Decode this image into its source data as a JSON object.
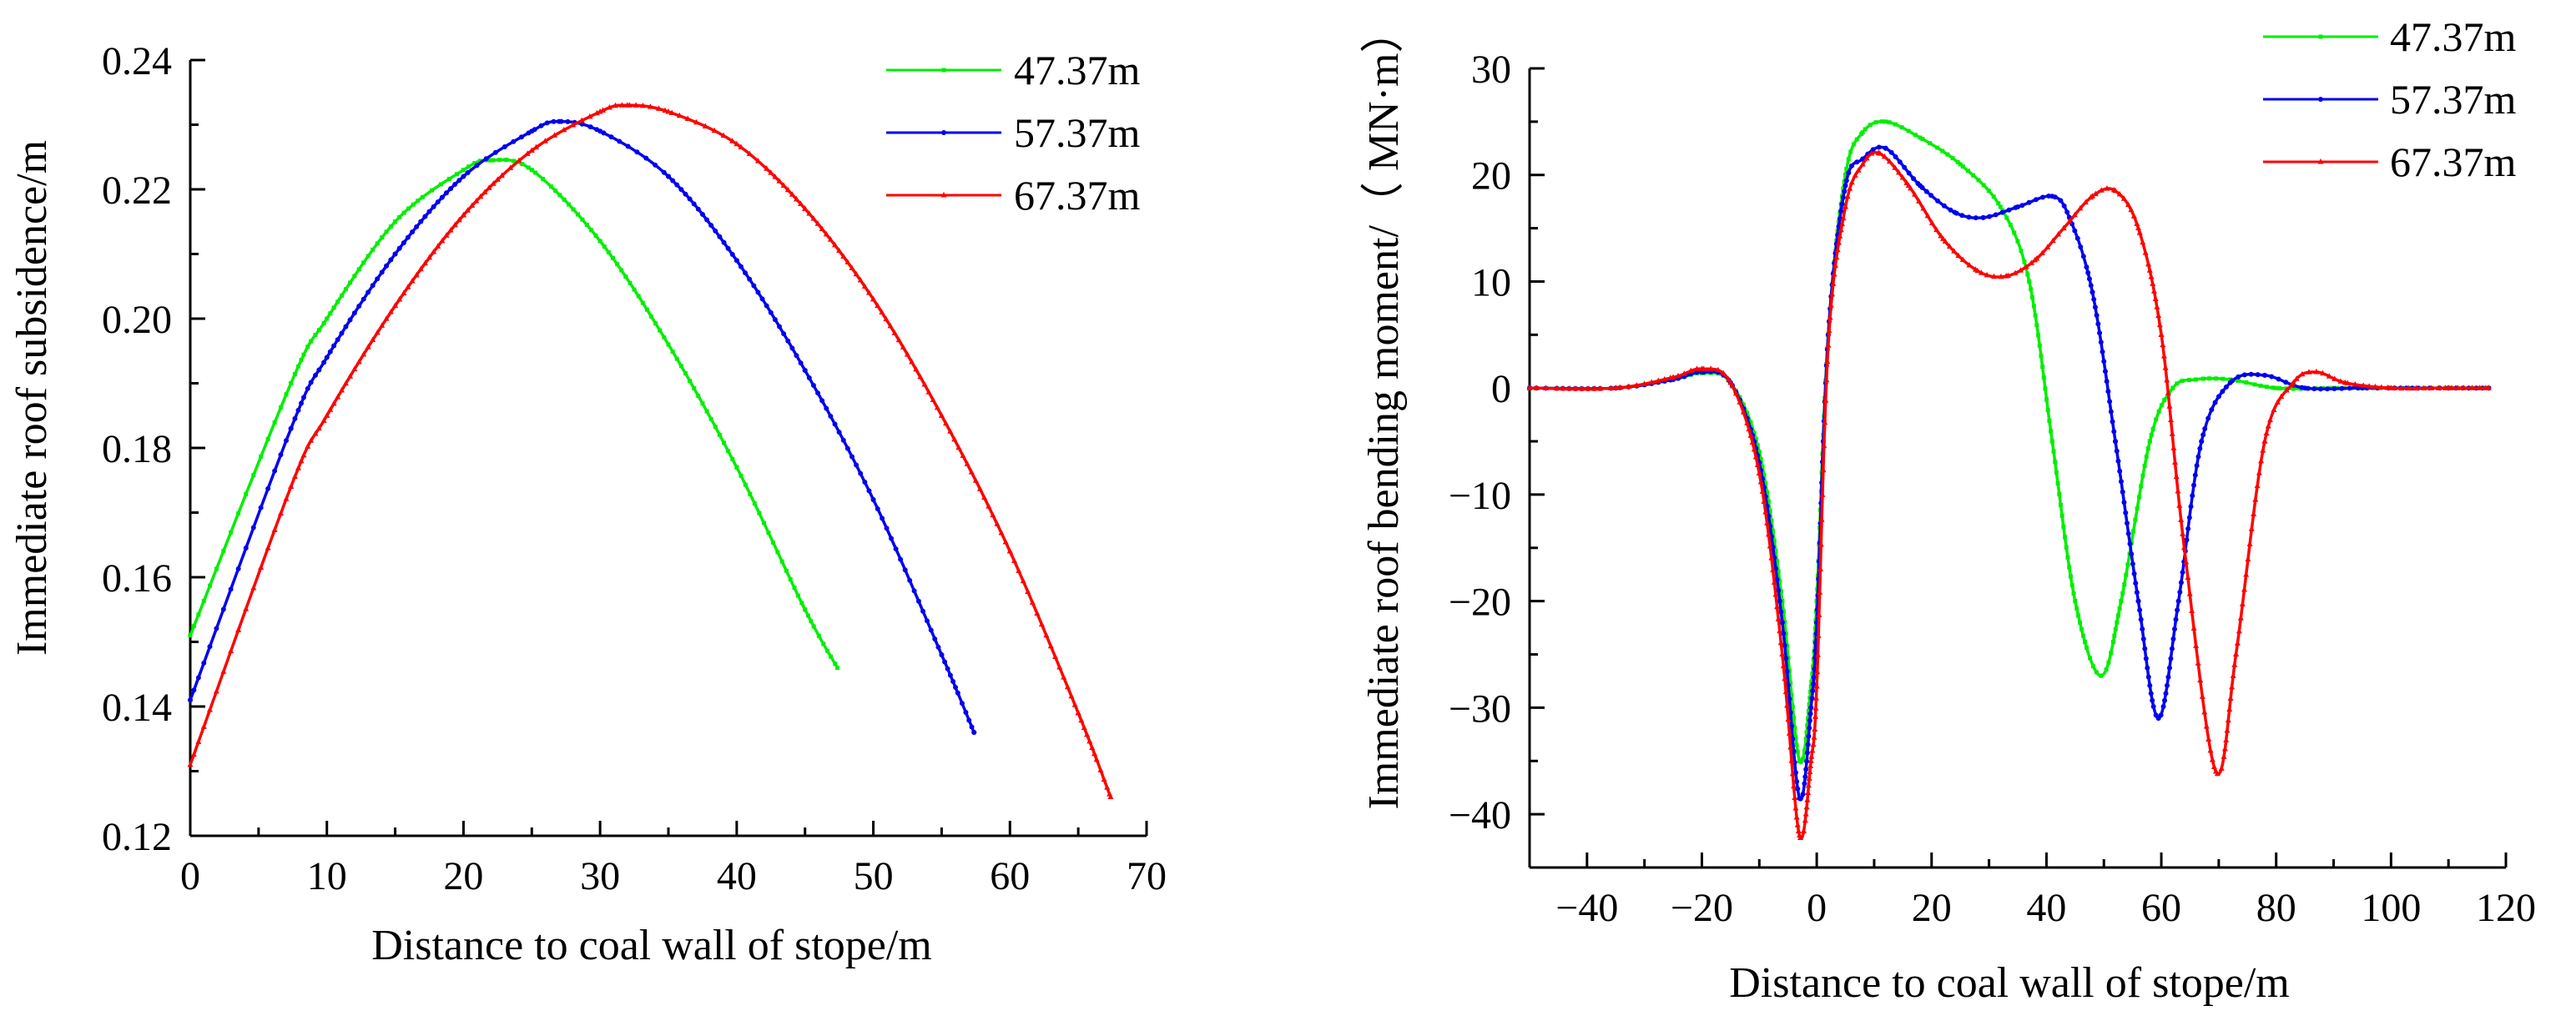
{
  "chart_data": [
    {
      "type": "line",
      "xlabel": "Distance to coal wall of stope/m",
      "ylabel": "Immediate roof subsidence/m",
      "xlim": [
        0,
        70
      ],
      "ylim": [
        0.12,
        0.24
      ],
      "xticks": [
        0,
        10,
        20,
        30,
        40,
        50,
        60,
        70
      ],
      "xtick_labels": [
        "0",
        "10",
        "20",
        "30",
        "40",
        "50",
        "60",
        "70"
      ],
      "yticks": [
        0.12,
        0.14,
        0.16,
        0.18,
        0.2,
        0.22,
        0.24
      ],
      "ytick_labels": [
        "0.12",
        "0.14",
        "0.16",
        "0.18",
        "0.20",
        "0.22",
        "0.24"
      ],
      "legend_position": "top-right",
      "series": [
        {
          "name": "47.37m",
          "color": "#00ee00",
          "marker": "square",
          "x": [
            0,
            7.37,
            10,
            15,
            20,
            22,
            25,
            30,
            35,
            40,
            45,
            47.37
          ],
          "y": [
            0.151,
            0.19,
            0.2,
            0.215,
            0.223,
            0.2245,
            0.223,
            0.212,
            0.196,
            0.177,
            0.155,
            0.146
          ]
        },
        {
          "name": "57.37m",
          "color": "#0000ee",
          "marker": "circle",
          "x": [
            0,
            7.37,
            10,
            15,
            20,
            25,
            27,
            30,
            35,
            40,
            45,
            50,
            55,
            57.37
          ],
          "y": [
            0.141,
            0.183,
            0.194,
            0.21,
            0.222,
            0.229,
            0.2305,
            0.229,
            0.222,
            0.209,
            0.192,
            0.172,
            0.148,
            0.136
          ]
        },
        {
          "name": "67.37m",
          "color": "#ff0000",
          "marker": "triangle",
          "x": [
            0,
            7.37,
            10,
            15,
            20,
            25,
            30,
            32,
            35,
            40,
            45,
            50,
            55,
            60,
            65,
            67.37
          ],
          "y": [
            0.131,
            0.174,
            0.185,
            0.202,
            0.216,
            0.226,
            0.232,
            0.233,
            0.232,
            0.227,
            0.217,
            0.203,
            0.185,
            0.164,
            0.139,
            0.126
          ]
        }
      ]
    },
    {
      "type": "line",
      "xlabel": "Distance to coal wall of stope/m",
      "ylabel": "Immediate roof bending moment/（ MN·m）",
      "xlim": [
        -50,
        120
      ],
      "ylim": [
        -45,
        30
      ],
      "xticks": [
        -40,
        -20,
        0,
        20,
        40,
        60,
        80,
        100,
        120
      ],
      "xtick_labels": [
        "−40",
        "−20",
        "0",
        "20",
        "40",
        "60",
        "80",
        "100",
        "120"
      ],
      "yticks": [
        -40,
        -30,
        -20,
        -10,
        0,
        10,
        20,
        30
      ],
      "ytick_labels": [
        "−40",
        "−30",
        "−20",
        "−10",
        "0",
        "10",
        "20",
        "30"
      ],
      "legend_position": "top-right",
      "series": [
        {
          "name": "47.37m",
          "color": "#00ee00",
          "marker": "square",
          "x": [
            -50,
            -35,
            -25,
            -20,
            -15,
            -10,
            -6,
            -3,
            -1,
            0,
            2,
            5,
            8,
            12,
            18,
            25,
            32,
            37,
            41,
            45,
            49.5,
            53,
            58,
            62,
            66,
            72,
            80,
            90,
            100,
            110,
            117
          ],
          "y": [
            0,
            0,
            0.8,
            1.4,
            0.5,
            -6,
            -20,
            -35,
            -28,
            -20,
            5,
            20,
            24,
            25,
            23.5,
            21,
            17,
            10,
            -5,
            -20,
            -27,
            -20,
            -5,
            0,
            0.8,
            0.8,
            0,
            0,
            0,
            0,
            0
          ]
        },
        {
          "name": "57.37m",
          "color": "#0000ee",
          "marker": "circle",
          "x": [
            -50,
            -35,
            -25,
            -20,
            -15,
            -10,
            -6,
            -3,
            -1,
            0,
            2,
            5,
            8,
            12,
            18,
            24,
            29,
            35,
            41,
            44,
            48,
            52,
            56,
            59.5,
            63,
            67,
            72,
            78,
            85,
            95,
            110,
            117
          ],
          "y": [
            0,
            0,
            0.8,
            1.5,
            0.5,
            -7,
            -22,
            -38.5,
            -30,
            -22,
            5,
            19,
            21.5,
            22.5,
            19,
            16.5,
            16,
            17,
            18,
            16,
            9,
            -5,
            -20,
            -31,
            -20,
            -5,
            0.5,
            1.2,
            0,
            0,
            0,
            0
          ]
        },
        {
          "name": "67.37m",
          "color": "#ff0000",
          "marker": "triangle",
          "x": [
            -50,
            -35,
            -25,
            -20,
            -15,
            -10,
            -6,
            -3,
            -1,
            0,
            2,
            5,
            8,
            11,
            16,
            22,
            28,
            33,
            38,
            43,
            48,
            52,
            56,
            60,
            64,
            69.5,
            73,
            78,
            83,
            87,
            92,
            100,
            110,
            117
          ],
          "y": [
            0,
            0,
            1,
            1.8,
            0.5,
            -8,
            -25,
            -42,
            -35,
            -28,
            4,
            17,
            21,
            22,
            19,
            14,
            11,
            10.5,
            12,
            15,
            18,
            18.5,
            15,
            5,
            -15,
            -36,
            -25,
            -5,
            0.5,
            1.5,
            0.5,
            0,
            0,
            0
          ]
        }
      ]
    }
  ]
}
